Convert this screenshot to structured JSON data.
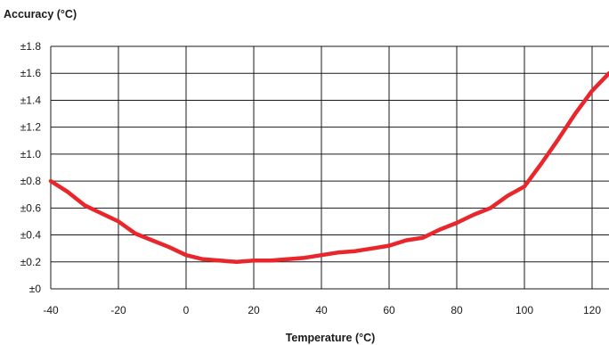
{
  "chart_data": {
    "type": "line",
    "title": "",
    "xlabel": "Temperature (°C)",
    "ylabel": "Accuracy (°C)",
    "xlim": [
      -40,
      125
    ],
    "ylim": [
      0,
      1.8
    ],
    "x_ticks": [
      -40,
      -20,
      0,
      20,
      40,
      60,
      80,
      100,
      120
    ],
    "x_tick_labels": [
      "-40",
      "-20",
      "0",
      "20",
      "40",
      "60",
      "80",
      "100",
      "120"
    ],
    "y_ticks": [
      0,
      0.2,
      0.4,
      0.6,
      0.8,
      1.0,
      1.2,
      1.4,
      1.6,
      1.8
    ],
    "y_tick_labels": [
      "±0",
      "±0.2",
      "±0.4",
      "±0.6",
      "±0.8",
      "±1.0",
      "±1.2",
      "±1.4",
      "±1.6",
      "±1.8"
    ],
    "grid": true,
    "legend": "none",
    "line_color": "#e8262b",
    "series": [
      {
        "x": [
          -40,
          -35,
          -30,
          -25,
          -20,
          -15,
          -10,
          -5,
          0,
          5,
          10,
          15,
          20,
          25,
          30,
          35,
          40,
          45,
          50,
          55,
          60,
          65,
          70,
          75,
          80,
          85,
          90,
          95,
          100,
          105,
          110,
          115,
          120,
          125
        ],
        "values": [
          0.8,
          0.72,
          0.62,
          0.56,
          0.5,
          0.41,
          0.36,
          0.31,
          0.25,
          0.22,
          0.21,
          0.2,
          0.21,
          0.21,
          0.22,
          0.23,
          0.25,
          0.27,
          0.28,
          0.3,
          0.32,
          0.36,
          0.38,
          0.44,
          0.49,
          0.55,
          0.6,
          0.69,
          0.76,
          0.93,
          1.11,
          1.3,
          1.47,
          1.6
        ]
      }
    ]
  }
}
